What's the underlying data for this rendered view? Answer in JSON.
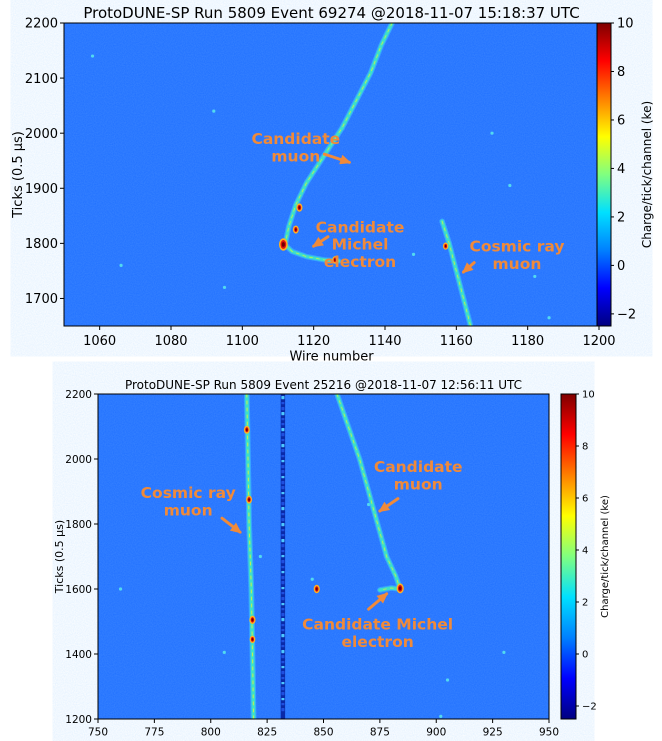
{
  "colors": {
    "background": "#1f6fff",
    "track": "#3ee0c8",
    "track_core": "#d8f040",
    "hot": "#e01010",
    "hot_dark": "#700000",
    "annotation": "#f08a3a",
    "axis": "#000000"
  },
  "colorbar": {
    "stops": [
      "#7f0000",
      "#ff0000",
      "#ff8000",
      "#ffff00",
      "#80ff80",
      "#00e0ff",
      "#0080ff",
      "#0000ff",
      "#000080"
    ],
    "label": "Charge/tick/channel (ke)"
  },
  "chart_data": [
    {
      "type": "heatmap",
      "title": "ProtoDUNE-SP Run 5809 Event 69274 @2018-11-07 15:18:37 UTC",
      "xlabel": "Wire number",
      "ylabel": "Ticks (0.5 μs)",
      "xlim": [
        1050,
        1200
      ],
      "ylim": [
        1650,
        2200
      ],
      "xticks": [
        "1060",
        "1080",
        "1100",
        "1120",
        "1140",
        "1160",
        "1180",
        "1200"
      ],
      "yticks": [
        "1700",
        "1800",
        "1900",
        "2000",
        "2100",
        "2200"
      ],
      "colorbar_label": "Charge/tick/channel (ke)",
      "colorbar_range": [
        -2.5,
        10
      ],
      "colorbar_ticks": [
        "−2",
        "0",
        "2",
        "4",
        "6",
        "8",
        "10"
      ],
      "tracks": [
        {
          "points": [
            [
              1112,
              1797
            ],
            [
              1113,
              1830
            ],
            [
              1115,
              1870
            ],
            [
              1118,
              1910
            ],
            [
              1123,
              1960
            ],
            [
              1128,
              2010
            ],
            [
              1132,
              2060
            ],
            [
              1136,
              2110
            ],
            [
              1139,
              2160
            ],
            [
              1142,
              2200
            ]
          ],
          "width": 2.4
        },
        {
          "points": [
            [
              1112,
              1797
            ],
            [
              1114,
              1785
            ],
            [
              1118,
              1776
            ],
            [
              1123,
              1770
            ],
            [
              1127,
              1768
            ]
          ],
          "width": 2.2
        },
        {
          "points": [
            [
              1156,
              1840
            ],
            [
              1158,
              1800
            ],
            [
              1160,
              1750
            ],
            [
              1162,
              1700
            ],
            [
              1164,
              1650
            ]
          ],
          "width": 2.4
        }
      ],
      "hotspots": [
        [
          1111.5,
          1798,
          2.6
        ],
        [
          1116,
          1865,
          1.6
        ],
        [
          1115,
          1825,
          1.5
        ],
        [
          1126,
          1770,
          1.4
        ],
        [
          1157,
          1795,
          1.3
        ]
      ],
      "dots": [
        [
          1058,
          2140
        ],
        [
          1092,
          2040
        ],
        [
          1095,
          1720
        ],
        [
          1148,
          1780
        ],
        [
          1182,
          1740
        ],
        [
          1186,
          1665
        ],
        [
          1175,
          1905
        ],
        [
          1066,
          1760
        ],
        [
          1170,
          2000
        ]
      ],
      "annotations": [
        {
          "lines": [
            "Candidate",
            "muon"
          ],
          "x": 1115,
          "y": 1980,
          "arrow_from": [
            1123,
            1962
          ],
          "arrow_to": [
            1130,
            1947
          ]
        },
        {
          "lines": [
            "Candidate",
            "Michel",
            "electron"
          ],
          "x": 1133,
          "y": 1820,
          "arrow_from": [
            1124,
            1812
          ],
          "arrow_to": [
            1120,
            1795
          ]
        },
        {
          "lines": [
            "Cosmic ray",
            "muon"
          ],
          "x": 1177,
          "y": 1785,
          "arrow_from": [
            1165,
            1765
          ],
          "arrow_to": [
            1162,
            1748
          ]
        }
      ]
    },
    {
      "type": "heatmap",
      "title": "ProtoDUNE-SP Run 5809 Event 25216 @2018-11-07 12:56:11 UTC",
      "xlabel": "Wire number",
      "ylabel": "Ticks (0.5 μs)",
      "xlim": [
        750,
        950
      ],
      "ylim": [
        1200,
        2200
      ],
      "xticks": [
        "750",
        "775",
        "800",
        "825",
        "850",
        "875",
        "900",
        "925",
        "950"
      ],
      "yticks": [
        "1200",
        "1400",
        "1600",
        "1800",
        "2000",
        "2200"
      ],
      "colorbar_label": "Charge/tick/channel (ke)",
      "colorbar_range": [
        -2.5,
        10
      ],
      "colorbar_ticks": [
        "−2",
        "0",
        "2",
        "4",
        "6",
        "8",
        "10"
      ],
      "tracks": [
        {
          "points": [
            [
              816,
              2200
            ],
            [
              816.5,
              2000
            ],
            [
              817,
              1800
            ],
            [
              818,
              1600
            ],
            [
              818.5,
              1400
            ],
            [
              819,
              1200
            ]
          ],
          "width": 2.6
        },
        {
          "points": [
            [
              856,
              2200
            ],
            [
              861,
              2100
            ],
            [
              866,
              2000
            ],
            [
              870,
              1900
            ],
            [
              874,
              1800
            ],
            [
              878,
              1700
            ],
            [
              882,
              1640
            ],
            [
              884,
              1600
            ]
          ],
          "width": 2.4
        },
        {
          "points": [
            [
              884,
              1600
            ],
            [
              880,
              1603
            ],
            [
              875,
              1597
            ]
          ],
          "width": 2.4
        }
      ],
      "hotspots": [
        [
          816,
          2090,
          1.5
        ],
        [
          817,
          1875,
          1.5
        ],
        [
          818.5,
          1505,
          1.6
        ],
        [
          818.5,
          1445,
          1.4
        ],
        [
          884,
          1602,
          2.0
        ],
        [
          847,
          1600,
          1.6
        ]
      ],
      "dots": [
        [
          806,
          1405
        ],
        [
          845,
          1630
        ],
        [
          902,
          1208
        ],
        [
          930,
          1405
        ],
        [
          760,
          1600
        ],
        [
          870,
          1860
        ],
        [
          822,
          1700
        ],
        [
          905,
          1320
        ]
      ],
      "annotations": [
        {
          "lines": [
            "Candidate",
            "muon"
          ],
          "x": 892,
          "y": 1960,
          "arrow_from": [
            883,
            1878
          ],
          "arrow_to": [
            875,
            1840
          ]
        },
        {
          "lines": [
            "Cosmic ray",
            "muon"
          ],
          "x": 790,
          "y": 1880,
          "arrow_from": [
            805,
            1818
          ],
          "arrow_to": [
            813,
            1775
          ]
        },
        {
          "lines": [
            "Candidate Michel",
            "electron"
          ],
          "x": 874,
          "y": 1475,
          "arrow_from": [
            870,
            1538
          ],
          "arrow_to": [
            878,
            1585
          ]
        }
      ]
    }
  ]
}
